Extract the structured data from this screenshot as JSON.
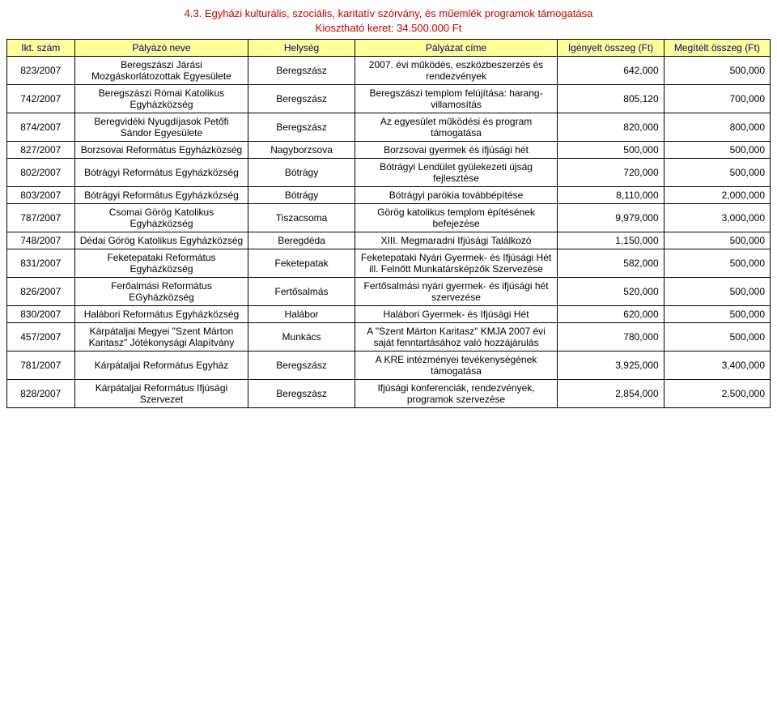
{
  "title_line1": "4.3. Egyházi kulturális, szociális, karitatív szórvány, és műemlék programok támogatása",
  "title_line2": "Kiosztható keret: 34.500.000 Ft",
  "columns": [
    "Ikt. szám",
    "Pályázó neve",
    "Helység",
    "Pályázat címe",
    "Igényelt összeg (Ft)",
    "Megítélt összeg (Ft)"
  ],
  "rows": [
    {
      "id": "823/2007",
      "name": "Beregszászi Járási Mozgáskorlátozottak Egyesülete",
      "loc": "Beregszász",
      "proj": "2007. évi működés, eszközbeszerzés és rendezvények",
      "req": "642,000",
      "awd": "500,000"
    },
    {
      "id": "742/2007",
      "name": "Beregszászi Római Katolikus Egyházközség",
      "loc": "Beregszász",
      "proj": "Beregszászi templom felújítása: harang-villamosítás",
      "req": "805,120",
      "awd": "700,000"
    },
    {
      "id": "874/2007",
      "name": "Beregvidéki Nyugdíjasok Petőfi Sándor Egyesülete",
      "loc": "Beregszász",
      "proj": "Az egyesület működési és program támogatása",
      "req": "820,000",
      "awd": "800,000"
    },
    {
      "id": "827/2007",
      "name": "Borzsovai Református Egyházközség",
      "loc": "Nagyborzsova",
      "proj": "Borzsovai gyermek és ifjúsági hét",
      "req": "500,000",
      "awd": "500,000"
    },
    {
      "id": "802/2007",
      "name": "Bótrágyi Református Egyházközség",
      "loc": "Bótrágy",
      "proj": "Bótrágyi Lendület gyülekezeti újság fejlesztése",
      "req": "720,000",
      "awd": "500,000"
    },
    {
      "id": "803/2007",
      "name": "Bótrágyi Református Egyházközség",
      "loc": "Bótrágy",
      "proj": "Bótrágyi parókia továbbépítése",
      "req": "8,110,000",
      "awd": "2,000,000"
    },
    {
      "id": "787/2007",
      "name": "Csomai Görög Katolikus Egyházközség",
      "loc": "Tiszacsoma",
      "proj": "Görög katolikus templom építésének befejezése",
      "req": "9,979,000",
      "awd": "3,000,000"
    },
    {
      "id": "748/2007",
      "name": "Dédai Görög Katolikus Egyházközség",
      "loc": "Beregdéda",
      "proj": "XIII. Megmaradni Ifjúsági Találkozó",
      "req": "1,150,000",
      "awd": "500,000"
    },
    {
      "id": "831/2007",
      "name": "Feketepataki Református Egyházközség",
      "loc": "Feketepatak",
      "proj": "Feketepataki Nyári Gyermek- és Ifjúsági Hét ill. Felnőtt Munkatársképzők Szervezése",
      "req": "582,000",
      "awd": "500,000"
    },
    {
      "id": "826/2007",
      "name": "Ferőalmási Református EGyházközség",
      "loc": "Fertősalmás",
      "proj": "Fertősalmási nyári gyermek- és ifjúsági hét szervezése",
      "req": "520,000",
      "awd": "500,000"
    },
    {
      "id": "830/2007",
      "name": "Halábori Református Egyházközség",
      "loc": "Halábor",
      "proj": "Halábori Gyermek- és Ifjúsági Hét",
      "req": "620,000",
      "awd": "500,000"
    },
    {
      "id": "457/2007",
      "name": "Kárpátaljai Megyei \"Szent Márton Karitasz\" Jótékonysági Alapítvány",
      "loc": "Munkács",
      "proj": "A \"Szent Márton Karitasz\" KMJA 2007 évi saját fenntartásához való hozzájárulás",
      "req": "780,000",
      "awd": "500,000"
    },
    {
      "id": "781/2007",
      "name": "Kárpátaljai Református Egyház",
      "loc": "Beregszász",
      "proj": "A KRE intézményei tevékenységének támogatása",
      "req": "3,925,000",
      "awd": "3,400,000"
    },
    {
      "id": "828/2007",
      "name": "Kárpátaljai Református Ifjúsági Szervezet",
      "loc": "Beregszász",
      "proj": "Ifjúsági konferenciák, rendezvények, programok szervezése",
      "req": "2,854,000",
      "awd": "2,500,000"
    }
  ]
}
